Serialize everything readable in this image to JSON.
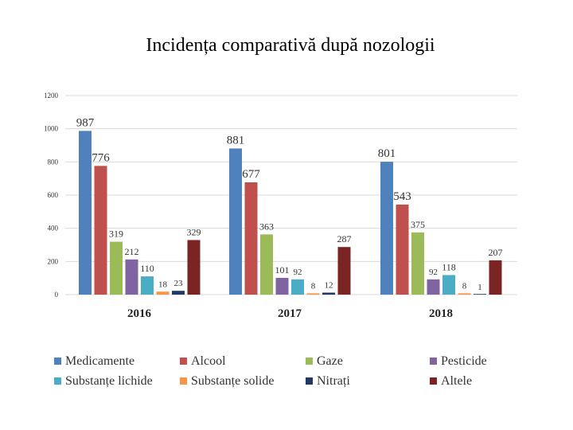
{
  "page": {
    "title": "Incidența comparativă după nozologii"
  },
  "chart_data": {
    "type": "bar",
    "title": "Incidența comparativă după nozologii",
    "categories": [
      "2016",
      "2017",
      "2018"
    ],
    "ylim": [
      0,
      1200
    ],
    "yticks": [
      "0",
      "200",
      "400",
      "600",
      "800",
      "1000",
      "1200"
    ],
    "grid": true,
    "legend": "bottom",
    "series": [
      {
        "name": "Medicamente",
        "color": "#4f81bd",
        "values": [
          987,
          881,
          801
        ],
        "labels": [
          "987",
          "881",
          "801"
        ]
      },
      {
        "name": "Alcool",
        "color": "#c0504d",
        "values": [
          776,
          677,
          543
        ],
        "labels": [
          "776",
          "677",
          "543"
        ]
      },
      {
        "name": "Gaze",
        "color": "#9bbb59",
        "values": [
          319,
          363,
          375
        ],
        "labels": [
          "319",
          "363",
          "375"
        ]
      },
      {
        "name": "Pesticide",
        "color": "#8064a2",
        "values": [
          212,
          101,
          92
        ],
        "labels": [
          "212",
          "101",
          "92"
        ]
      },
      {
        "name": "Substanțe lichide",
        "color": "#4bacc6",
        "values": [
          110,
          92,
          118
        ],
        "labels": [
          "110",
          "92",
          "118"
        ]
      },
      {
        "name": "Substanțe solide",
        "color": "#f79646",
        "values": [
          18,
          8,
          8
        ],
        "labels": [
          "18",
          "8",
          "8"
        ]
      },
      {
        "name": "Nitrați",
        "color": "#1f3864",
        "values": [
          23,
          12,
          1
        ],
        "labels": [
          "23",
          "12",
          "1"
        ]
      },
      {
        "name": "Altele",
        "color": "#7b2424",
        "values": [
          329,
          287,
          207
        ],
        "labels": [
          "329",
          "287",
          "207"
        ]
      }
    ]
  }
}
